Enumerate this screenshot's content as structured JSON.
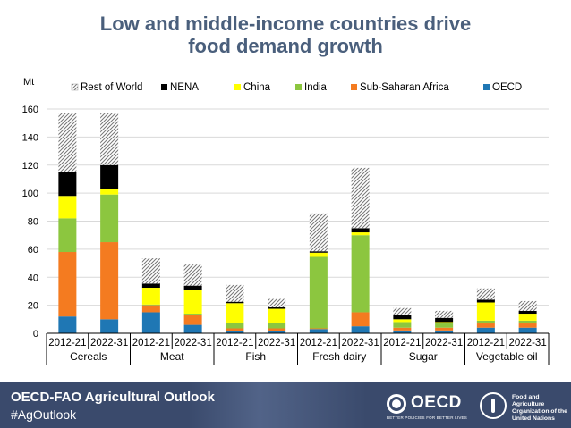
{
  "title": {
    "line1": "Low and middle-income countries drive",
    "line2": "food demand growth"
  },
  "footer": {
    "title": "OECD-FAO Agricultural Outlook",
    "hashtag": "#AgOutlook",
    "oecd_logo": "OECD",
    "oecd_tagline": "BETTER POLICIES FOR BETTER LIVES",
    "fao_line1": "Food and Agriculture",
    "fao_line2": "Organization of the",
    "fao_line3": "United Nations"
  },
  "chart_data": {
    "type": "bar",
    "stacked": true,
    "title": "",
    "ylabel": "Mt",
    "ylim": [
      0,
      160
    ],
    "yticks": [
      0,
      20,
      40,
      60,
      80,
      100,
      120,
      140,
      160
    ],
    "grid": true,
    "legend_position": "top",
    "groups": [
      "Cereals",
      "Meat",
      "Fish",
      "Fresh dairy",
      "Sugar",
      "Vegetable oil"
    ],
    "categories": [
      "2012-21",
      "2022-31",
      "2012-21",
      "2022-31",
      "2012-21",
      "2022-31",
      "2012-21",
      "2022-31",
      "2012-21",
      "2022-31",
      "2012-21",
      "2022-31"
    ],
    "legend_order": [
      "Rest of World",
      "NENA",
      "China",
      "India",
      "Sub-Saharan Africa",
      "OECD"
    ],
    "series": [
      {
        "name": "OECD",
        "color": "#1f77b4",
        "values": [
          12,
          10,
          15,
          6,
          1.5,
          1.5,
          3,
          5,
          2,
          2,
          4,
          4
        ]
      },
      {
        "name": "Sub-Saharan Africa",
        "color": "#f47b20",
        "values": [
          46,
          55,
          5,
          7,
          2,
          2,
          0.5,
          10,
          2,
          2,
          3,
          3
        ]
      },
      {
        "name": "India",
        "color": "#8cc63f",
        "values": [
          24,
          34,
          0.5,
          1,
          4,
          4,
          51,
          55,
          4,
          3,
          2,
          2
        ]
      },
      {
        "name": "China",
        "color": "#ffff00",
        "values": [
          16,
          4,
          12,
          17,
          14,
          10,
          3,
          2,
          2,
          1,
          13,
          5
        ]
      },
      {
        "name": "NENA",
        "color": "#000000",
        "values": [
          17,
          17,
          3,
          3,
          1,
          1,
          1,
          3,
          3,
          3,
          2,
          2
        ]
      },
      {
        "name": "Rest of World",
        "color": "hatch",
        "values": [
          42,
          37,
          18,
          15,
          12,
          6,
          27,
          43,
          5,
          5,
          8,
          7
        ]
      }
    ]
  }
}
